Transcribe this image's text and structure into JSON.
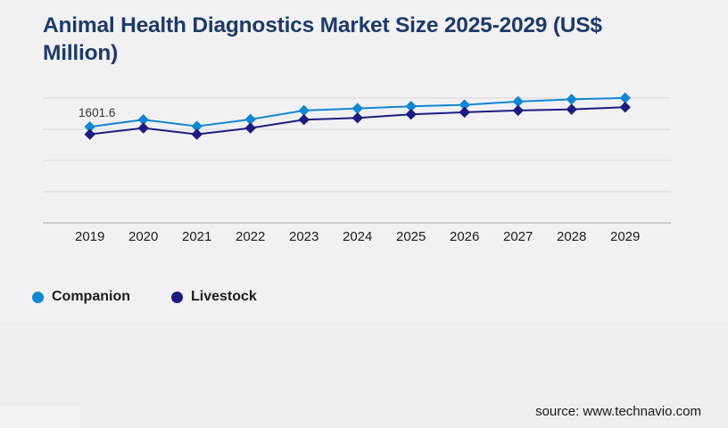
{
  "page": {
    "background": "#f1f1f4",
    "lower_band_color": "#ededf2",
    "corner_color": "#f3f3f6"
  },
  "header": {
    "title": "Animal Health Diagnostics Market Size 2025-2029 (US$ Million)",
    "title_line1": "Animal Health Diagnostics Market Size 2025-2029 (US$",
    "title_line2": "Million)",
    "title_color": "#1e3a68"
  },
  "chart_data": {
    "type": "line",
    "title": "Animal Health Diagnostics Market Size 2025-2029 (US$ Million)",
    "xlabel": "",
    "ylabel": "",
    "categories": [
      "2019",
      "2020",
      "2021",
      "2022",
      "2023",
      "2024",
      "2025",
      "2026",
      "2027",
      "2028",
      "2029"
    ],
    "series": [
      {
        "name": "Companion",
        "color": "#1287d1",
        "marker": "diamond",
        "values": [
          1601.6,
          1720,
          1610,
          1725,
          1873,
          1908,
          1943,
          1967,
          2022,
          2059,
          2081
        ]
      },
      {
        "name": "Livestock",
        "color": "#1c1c80",
        "marker": "diamond",
        "values": [
          1477,
          1581,
          1477,
          1581,
          1720,
          1750,
          1810,
          1844,
          1874,
          1893,
          1928
        ]
      }
    ],
    "data_labels": [
      {
        "series": "Companion",
        "category": "2019",
        "text": "1601.6"
      }
    ],
    "ylim": [
      0,
      2080
    ],
    "gridline_count": 5,
    "grid_on": true,
    "grid_color": "#d9d9dc",
    "axis_line_color": "#a8a8ac",
    "tick_label_color": "#1c1c1c",
    "data_label_color": "#333333",
    "legend_position": "bottom-left",
    "y_axis_labels_visible": false
  },
  "legend": {
    "items": [
      {
        "label": "Companion",
        "color": "#1287d1"
      },
      {
        "label": "Livestock",
        "color": "#1c1c80"
      }
    ]
  },
  "footer": {
    "source": "source: www.technavio.com"
  }
}
